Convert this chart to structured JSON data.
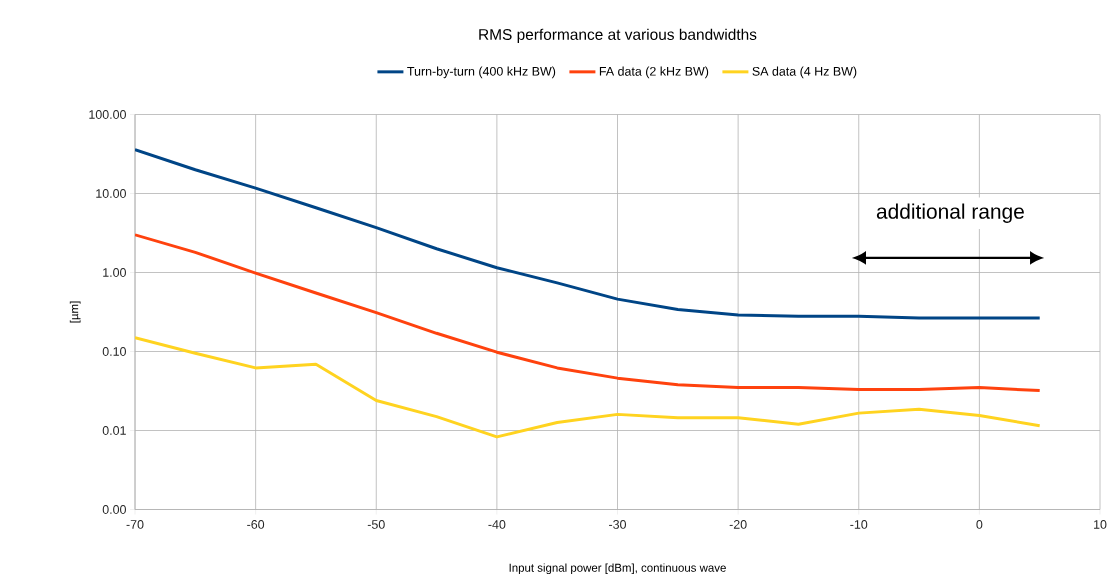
{
  "chart_data": {
    "type": "line",
    "title": "RMS performance at various bandwidths",
    "xlabel": "Input signal power [dBm], continuous wave",
    "ylabel": "[µm]",
    "x": [
      -70,
      -65,
      -60,
      -55,
      -50,
      -45,
      -40,
      -35,
      -30,
      -25,
      -20,
      -15,
      -10,
      -5,
      0,
      5
    ],
    "series": [
      {
        "name": "Turn-by-turn (400 kHz BW)",
        "color": "#004586",
        "values": [
          36,
          20,
          11.7,
          6.6,
          3.7,
          2.0,
          1.15,
          0.74,
          0.46,
          0.34,
          0.29,
          0.28,
          0.28,
          0.265,
          0.265,
          0.265
        ]
      },
      {
        "name": "FA data (2 kHz BW)",
        "color": "#ff420e",
        "values": [
          3.0,
          1.8,
          0.98,
          0.55,
          0.31,
          0.17,
          0.098,
          0.062,
          0.046,
          0.038,
          0.035,
          0.035,
          0.033,
          0.033,
          0.035,
          0.032
        ]
      },
      {
        "name": "SA data (4 Hz BW)",
        "color": "#ffd320",
        "values": [
          0.15,
          0.095,
          0.062,
          0.069,
          0.024,
          0.015,
          0.0083,
          0.0126,
          0.016,
          0.0145,
          0.0145,
          0.012,
          0.0166,
          0.0186,
          0.0155,
          0.0115
        ]
      }
    ],
    "xlim": [
      -70,
      10
    ],
    "xticks": [
      -70,
      -60,
      -50,
      -40,
      -30,
      -20,
      -10,
      0,
      10
    ],
    "ylim": [
      0.001,
      100
    ],
    "yticks": [
      {
        "value": 0.001,
        "label": "0.00"
      },
      {
        "value": 0.01,
        "label": "0.01"
      },
      {
        "value": 0.1,
        "label": "0.10"
      },
      {
        "value": 1,
        "label": "1.00"
      },
      {
        "value": 10,
        "label": "10.00"
      },
      {
        "value": 100,
        "label": "100.00"
      }
    ],
    "log": "y",
    "grid": true,
    "legend": "top",
    "marker": "none",
    "line_style": "solid",
    "annotations": [
      "additional range"
    ]
  }
}
